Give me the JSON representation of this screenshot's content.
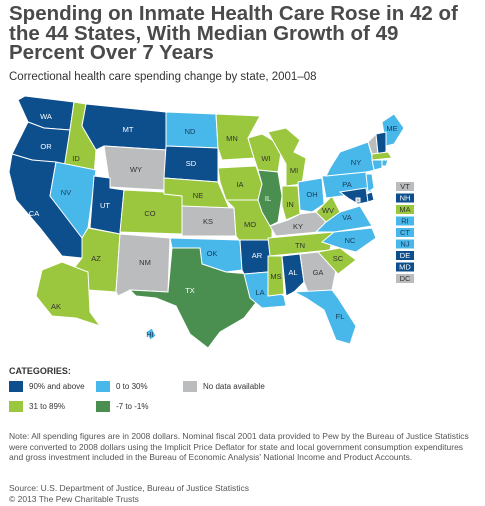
{
  "title": "Spending on Inmate Health Care Rose in 42 of the 44 States, With Median Growth of 49 Percent Over 7 Years",
  "subtitle": "Correctional health care spending change by state, 2001–08",
  "colors": {
    "high": "#0d4e8c",
    "mid": "#9ac73d",
    "low": "#48b8ea",
    "negative": "#4a8f4f",
    "nodata": "#bbbcbe",
    "border": "#ffffff"
  },
  "states": [
    {
      "abbr": "WA",
      "cat": "high"
    },
    {
      "abbr": "OR",
      "cat": "high"
    },
    {
      "abbr": "CA",
      "cat": "high"
    },
    {
      "abbr": "ID",
      "cat": "mid"
    },
    {
      "abbr": "NV",
      "cat": "low"
    },
    {
      "abbr": "MT",
      "cat": "high"
    },
    {
      "abbr": "WY",
      "cat": "nodata"
    },
    {
      "abbr": "UT",
      "cat": "high"
    },
    {
      "abbr": "AZ",
      "cat": "mid"
    },
    {
      "abbr": "CO",
      "cat": "mid"
    },
    {
      "abbr": "NM",
      "cat": "nodata"
    },
    {
      "abbr": "ND",
      "cat": "low"
    },
    {
      "abbr": "SD",
      "cat": "high"
    },
    {
      "abbr": "NE",
      "cat": "mid"
    },
    {
      "abbr": "KS",
      "cat": "nodata"
    },
    {
      "abbr": "OK",
      "cat": "low"
    },
    {
      "abbr": "TX",
      "cat": "negative"
    },
    {
      "abbr": "MN",
      "cat": "mid"
    },
    {
      "abbr": "IA",
      "cat": "mid"
    },
    {
      "abbr": "MO",
      "cat": "mid"
    },
    {
      "abbr": "AR",
      "cat": "high"
    },
    {
      "abbr": "LA",
      "cat": "low"
    },
    {
      "abbr": "WI",
      "cat": "mid"
    },
    {
      "abbr": "IL",
      "cat": "negative"
    },
    {
      "abbr": "MI",
      "cat": "mid"
    },
    {
      "abbr": "IN",
      "cat": "mid"
    },
    {
      "abbr": "OH",
      "cat": "low"
    },
    {
      "abbr": "KY",
      "cat": "nodata"
    },
    {
      "abbr": "TN",
      "cat": "mid"
    },
    {
      "abbr": "MS",
      "cat": "mid"
    },
    {
      "abbr": "AL",
      "cat": "high"
    },
    {
      "abbr": "GA",
      "cat": "nodata"
    },
    {
      "abbr": "FL",
      "cat": "low"
    },
    {
      "abbr": "SC",
      "cat": "mid"
    },
    {
      "abbr": "NC",
      "cat": "low"
    },
    {
      "abbr": "VA",
      "cat": "low"
    },
    {
      "abbr": "WV",
      "cat": "mid"
    },
    {
      "abbr": "PA",
      "cat": "low"
    },
    {
      "abbr": "NY",
      "cat": "low"
    },
    {
      "abbr": "ME",
      "cat": "low"
    },
    {
      "abbr": "AK",
      "cat": "mid"
    },
    {
      "abbr": "HI",
      "cat": "low"
    },
    {
      "abbr": "VT",
      "cat": "nodata"
    },
    {
      "abbr": "NH",
      "cat": "high"
    },
    {
      "abbr": "MA",
      "cat": "mid"
    },
    {
      "abbr": "RI",
      "cat": "low"
    },
    {
      "abbr": "CT",
      "cat": "low"
    },
    {
      "abbr": "NJ",
      "cat": "low"
    },
    {
      "abbr": "DE",
      "cat": "high"
    },
    {
      "abbr": "MD",
      "cat": "high"
    },
    {
      "abbr": "DC",
      "cat": "nodata"
    }
  ],
  "small_states": [
    "VT",
    "NH",
    "MA",
    "RI",
    "CT",
    "NJ",
    "DE",
    "MD",
    "DC"
  ],
  "legend": {
    "title": "CATEGORIES:",
    "items": [
      {
        "cat": "high",
        "label": "90% and above"
      },
      {
        "cat": "low",
        "label": "0 to 30%"
      },
      {
        "cat": "nodata",
        "label": "No data available"
      },
      {
        "cat": "mid",
        "label": "31 to 89%"
      },
      {
        "cat": "negative",
        "label": "-7 to -1%"
      }
    ]
  },
  "note": "Note: All spending figures are in 2008 dollars. Nominal fiscal 2001 data provided to Pew by the Bureau of Justice Statistics were converted to 2008 dollars using the Implicit Price Deflator for state and local government consumption expenditures and gross investment included in the Bureau of Economic Analysis' National Income and Product Accounts.",
  "source": "Source: U.S. Department of Justice, Bureau of Justice Statistics",
  "copyright": "© 2013 The Pew Charitable Trusts"
}
